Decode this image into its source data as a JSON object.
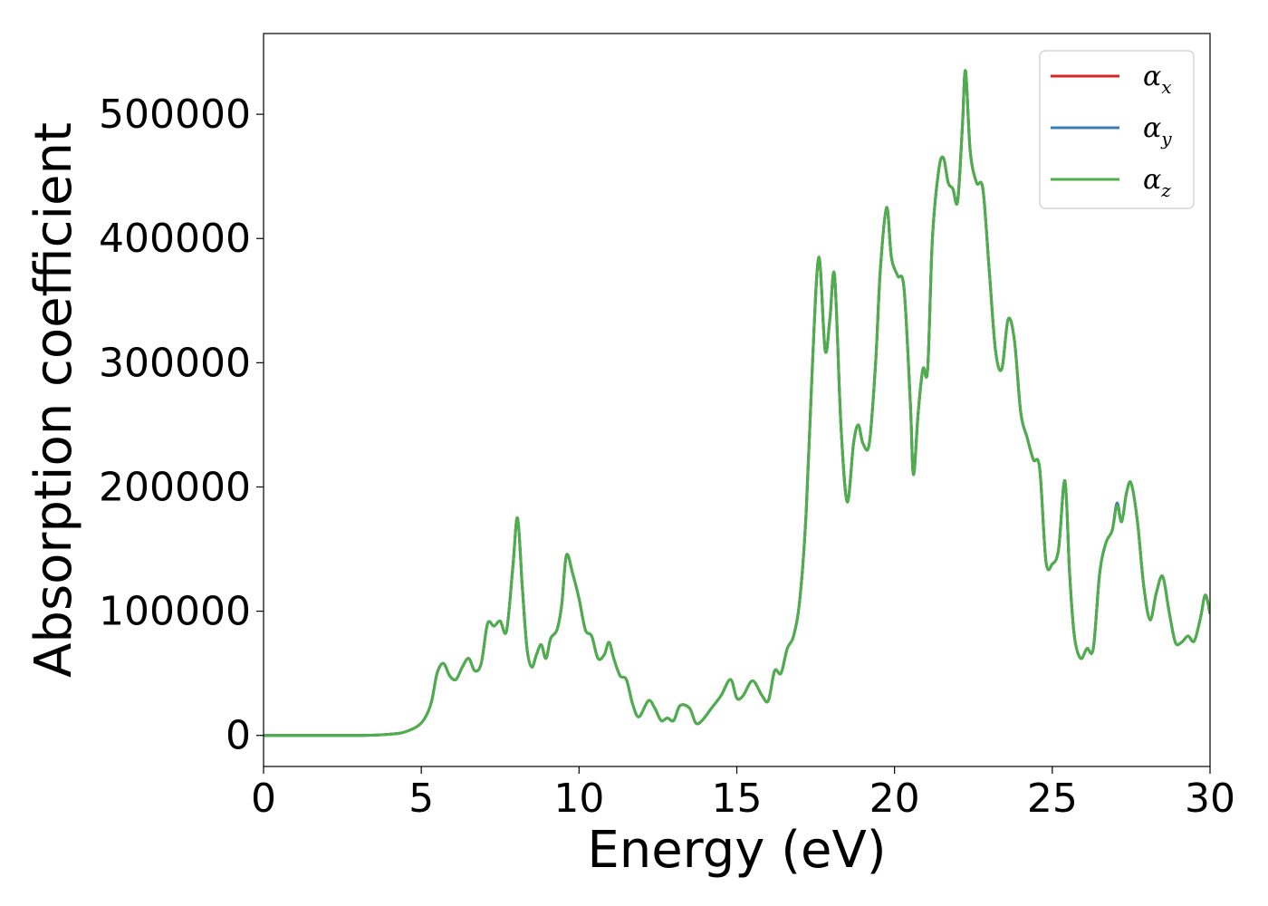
{
  "chart_data": {
    "type": "line",
    "xlabel": "Energy (eV)",
    "ylabel": "Absorption coefficient",
    "xlim": [
      0,
      30
    ],
    "ylim": [
      -25000,
      565000
    ],
    "x_ticks": [
      0,
      5,
      10,
      15,
      20,
      25,
      30
    ],
    "y_ticks": [
      0,
      100000,
      200000,
      300000,
      400000,
      500000
    ],
    "grid": false,
    "legend_position": "top-right",
    "series": [
      {
        "name": "α_x",
        "symbol": "α",
        "subscript": "x",
        "color": "#d62728",
        "x": [
          0,
          3,
          4,
          4.5,
          5,
          5.3,
          5.5,
          5.7,
          5.9,
          6.1,
          6.3,
          6.5,
          6.7,
          6.9,
          7.1,
          7.3,
          7.5,
          7.7,
          7.9,
          8.05,
          8.2,
          8.35,
          8.5,
          8.65,
          8.8,
          8.95,
          9.1,
          9.3,
          9.45,
          9.6,
          9.8,
          10.0,
          10.2,
          10.4,
          10.6,
          10.8,
          10.95,
          11.1,
          11.3,
          11.5,
          11.7,
          11.9,
          12.2,
          12.4,
          12.6,
          12.8,
          13.0,
          13.2,
          13.5,
          13.7,
          13.9,
          14.2,
          14.5,
          14.8,
          15.0,
          15.2,
          15.5,
          15.8,
          16.0,
          16.2,
          16.4,
          16.6,
          16.8,
          17.0,
          17.2,
          17.4,
          17.6,
          17.8,
          17.95,
          18.1,
          18.3,
          18.5,
          18.7,
          18.85,
          19.0,
          19.2,
          19.4,
          19.55,
          19.75,
          19.9,
          20.1,
          20.3,
          20.5,
          20.6,
          20.75,
          20.9,
          21.05,
          21.2,
          21.4,
          21.55,
          21.7,
          21.85,
          22.0,
          22.15,
          22.25,
          22.4,
          22.6,
          22.8,
          23.0,
          23.2,
          23.4,
          23.6,
          23.8,
          24.0,
          24.2,
          24.4,
          24.6,
          24.8,
          25.0,
          25.2,
          25.4,
          25.55,
          25.7,
          25.9,
          26.1,
          26.3,
          26.5,
          26.7,
          26.9,
          27.05,
          27.2,
          27.35,
          27.5,
          27.7,
          27.9,
          28.1,
          28.3,
          28.5,
          28.7,
          28.9,
          29.1,
          29.3,
          29.5,
          29.7,
          29.85,
          30
        ],
        "y": [
          0,
          0,
          1000,
          3000,
          10000,
          25000,
          50000,
          58000,
          48000,
          45000,
          55000,
          62000,
          52000,
          58000,
          90000,
          88000,
          92000,
          84000,
          135000,
          175000,
          120000,
          70000,
          55000,
          65000,
          73000,
          62000,
          78000,
          85000,
          105000,
          145000,
          130000,
          110000,
          85000,
          80000,
          62000,
          65000,
          75000,
          62000,
          48000,
          45000,
          25000,
          15000,
          28000,
          22000,
          12000,
          14000,
          12000,
          24000,
          22000,
          10000,
          12000,
          22000,
          32000,
          45000,
          30000,
          32000,
          44000,
          32000,
          28000,
          52000,
          50000,
          70000,
          80000,
          110000,
          180000,
          300000,
          385000,
          310000,
          335000,
          370000,
          250000,
          188000,
          235000,
          250000,
          235000,
          235000,
          300000,
          375000,
          425000,
          385000,
          370000,
          360000,
          268000,
          210000,
          260000,
          295000,
          295000,
          400000,
          455000,
          465000,
          445000,
          440000,
          430000,
          490000,
          535000,
          470000,
          445000,
          440000,
          375000,
          310000,
          295000,
          335000,
          318000,
          260000,
          240000,
          222000,
          215000,
          140000,
          138000,
          150000,
          205000,
          130000,
          80000,
          62000,
          70000,
          70000,
          130000,
          155000,
          165000,
          187000,
          172000,
          195000,
          203000,
          172000,
          120000,
          93000,
          115000,
          128000,
          100000,
          75000,
          75000,
          80000,
          76000,
          95000,
          113000,
          98000
        ]
      },
      {
        "name": "α_y",
        "symbol": "α",
        "subscript": "y",
        "color": "#377eb8",
        "x": [
          0,
          3,
          4,
          4.5,
          5,
          5.3,
          5.5,
          5.7,
          5.9,
          6.1,
          6.3,
          6.5,
          6.7,
          6.9,
          7.1,
          7.3,
          7.5,
          7.7,
          7.9,
          8.05,
          8.2,
          8.35,
          8.5,
          8.65,
          8.8,
          8.95,
          9.1,
          9.3,
          9.45,
          9.6,
          9.8,
          10.0,
          10.2,
          10.4,
          10.6,
          10.8,
          10.95,
          11.1,
          11.3,
          11.5,
          11.7,
          11.9,
          12.2,
          12.4,
          12.6,
          12.8,
          13.0,
          13.2,
          13.5,
          13.7,
          13.9,
          14.2,
          14.5,
          14.8,
          15.0,
          15.2,
          15.5,
          15.8,
          16.0,
          16.2,
          16.4,
          16.6,
          16.8,
          17.0,
          17.2,
          17.4,
          17.6,
          17.8,
          17.95,
          18.1,
          18.3,
          18.5,
          18.7,
          18.85,
          19.0,
          19.2,
          19.4,
          19.55,
          19.75,
          19.9,
          20.1,
          20.3,
          20.5,
          20.6,
          20.75,
          20.9,
          21.05,
          21.2,
          21.4,
          21.55,
          21.7,
          21.85,
          22.0,
          22.15,
          22.25,
          22.4,
          22.6,
          22.8,
          23.0,
          23.2,
          23.4,
          23.6,
          23.8,
          24.0,
          24.2,
          24.4,
          24.6,
          24.8,
          25.0,
          25.2,
          25.4,
          25.55,
          25.7,
          25.9,
          26.1,
          26.3,
          26.5,
          26.7,
          26.9,
          27.05,
          27.2,
          27.35,
          27.5,
          27.7,
          27.9,
          28.1,
          28.3,
          28.5,
          28.7,
          28.9,
          29.1,
          29.3,
          29.5,
          29.7,
          29.85,
          30
        ],
        "y": [
          0,
          0,
          1000,
          3000,
          10000,
          25000,
          50000,
          58000,
          48000,
          45000,
          55000,
          62000,
          52000,
          58000,
          90000,
          88000,
          92000,
          84000,
          135000,
          175000,
          120000,
          70000,
          55000,
          65000,
          73000,
          62000,
          78000,
          85000,
          105000,
          145000,
          130000,
          110000,
          85000,
          80000,
          62000,
          65000,
          75000,
          62000,
          48000,
          45000,
          25000,
          15000,
          28000,
          22000,
          12000,
          14000,
          12000,
          24000,
          22000,
          10000,
          12000,
          22000,
          32000,
          45000,
          30000,
          32000,
          44000,
          32000,
          28000,
          52000,
          50000,
          70000,
          80000,
          110000,
          180000,
          300000,
          385000,
          310000,
          335000,
          370000,
          250000,
          188000,
          235000,
          250000,
          235000,
          235000,
          300000,
          375000,
          425000,
          385000,
          370000,
          360000,
          268000,
          210000,
          260000,
          295000,
          295000,
          400000,
          455000,
          465000,
          445000,
          440000,
          430000,
          490000,
          535000,
          470000,
          445000,
          440000,
          375000,
          310000,
          295000,
          335000,
          318000,
          260000,
          240000,
          222000,
          215000,
          140000,
          138000,
          150000,
          205000,
          130000,
          80000,
          62000,
          70000,
          70000,
          130000,
          155000,
          165000,
          187000,
          172000,
          195000,
          203000,
          172000,
          120000,
          93000,
          115000,
          128000,
          100000,
          75000,
          75000,
          80000,
          76000,
          95000,
          113000,
          98000
        ]
      },
      {
        "name": "α_z",
        "symbol": "α",
        "subscript": "z",
        "color": "#4daf4a",
        "x": [
          0,
          3,
          4,
          4.5,
          5,
          5.3,
          5.5,
          5.7,
          5.9,
          6.1,
          6.3,
          6.5,
          6.7,
          6.9,
          7.1,
          7.3,
          7.5,
          7.7,
          7.9,
          8.05,
          8.2,
          8.35,
          8.5,
          8.65,
          8.8,
          8.95,
          9.1,
          9.3,
          9.45,
          9.6,
          9.8,
          10.0,
          10.2,
          10.4,
          10.6,
          10.8,
          10.95,
          11.1,
          11.3,
          11.5,
          11.7,
          11.9,
          12.2,
          12.4,
          12.6,
          12.8,
          13.0,
          13.2,
          13.5,
          13.7,
          13.9,
          14.2,
          14.5,
          14.8,
          15.0,
          15.2,
          15.5,
          15.8,
          16.0,
          16.2,
          16.4,
          16.6,
          16.8,
          17.0,
          17.2,
          17.4,
          17.6,
          17.8,
          17.95,
          18.1,
          18.3,
          18.5,
          18.7,
          18.85,
          19.0,
          19.2,
          19.4,
          19.55,
          19.75,
          19.9,
          20.1,
          20.3,
          20.5,
          20.6,
          20.75,
          20.9,
          21.05,
          21.2,
          21.4,
          21.55,
          21.7,
          21.85,
          22.0,
          22.15,
          22.25,
          22.4,
          22.6,
          22.8,
          23.0,
          23.2,
          23.4,
          23.6,
          23.8,
          24.0,
          24.2,
          24.4,
          24.6,
          24.8,
          25.0,
          25.2,
          25.4,
          25.55,
          25.7,
          25.9,
          26.1,
          26.3,
          26.5,
          26.7,
          26.9,
          27.05,
          27.2,
          27.35,
          27.5,
          27.7,
          27.9,
          28.1,
          28.3,
          28.5,
          28.7,
          28.9,
          29.1,
          29.3,
          29.5,
          29.7,
          29.85,
          30
        ],
        "y": [
          0,
          0,
          1000,
          3000,
          10000,
          25000,
          50000,
          58000,
          48000,
          45000,
          55000,
          62000,
          52000,
          58000,
          90000,
          88000,
          92000,
          84000,
          135000,
          175000,
          120000,
          70000,
          55000,
          65000,
          73000,
          62000,
          78000,
          85000,
          105000,
          145000,
          130000,
          110000,
          85000,
          80000,
          62000,
          65000,
          75000,
          62000,
          48000,
          45000,
          25000,
          15000,
          28000,
          22000,
          12000,
          14000,
          12000,
          24000,
          22000,
          10000,
          12000,
          22000,
          32000,
          45000,
          30000,
          32000,
          44000,
          32000,
          28000,
          52000,
          50000,
          70000,
          80000,
          110000,
          180000,
          300000,
          385000,
          310000,
          335000,
          370000,
          250000,
          188000,
          235000,
          250000,
          235000,
          235000,
          300000,
          375000,
          425000,
          385000,
          370000,
          360000,
          268000,
          210000,
          260000,
          295000,
          295000,
          400000,
          455000,
          465000,
          445000,
          440000,
          430000,
          490000,
          535000,
          470000,
          445000,
          440000,
          375000,
          310000,
          295000,
          335000,
          318000,
          260000,
          240000,
          222000,
          215000,
          140000,
          138000,
          150000,
          205000,
          130000,
          80000,
          62000,
          70000,
          70000,
          130000,
          155000,
          165000,
          185000,
          172000,
          195000,
          203000,
          172000,
          120000,
          93000,
          115000,
          128000,
          100000,
          75000,
          75000,
          80000,
          76000,
          95000,
          113000,
          98000
        ]
      }
    ]
  }
}
